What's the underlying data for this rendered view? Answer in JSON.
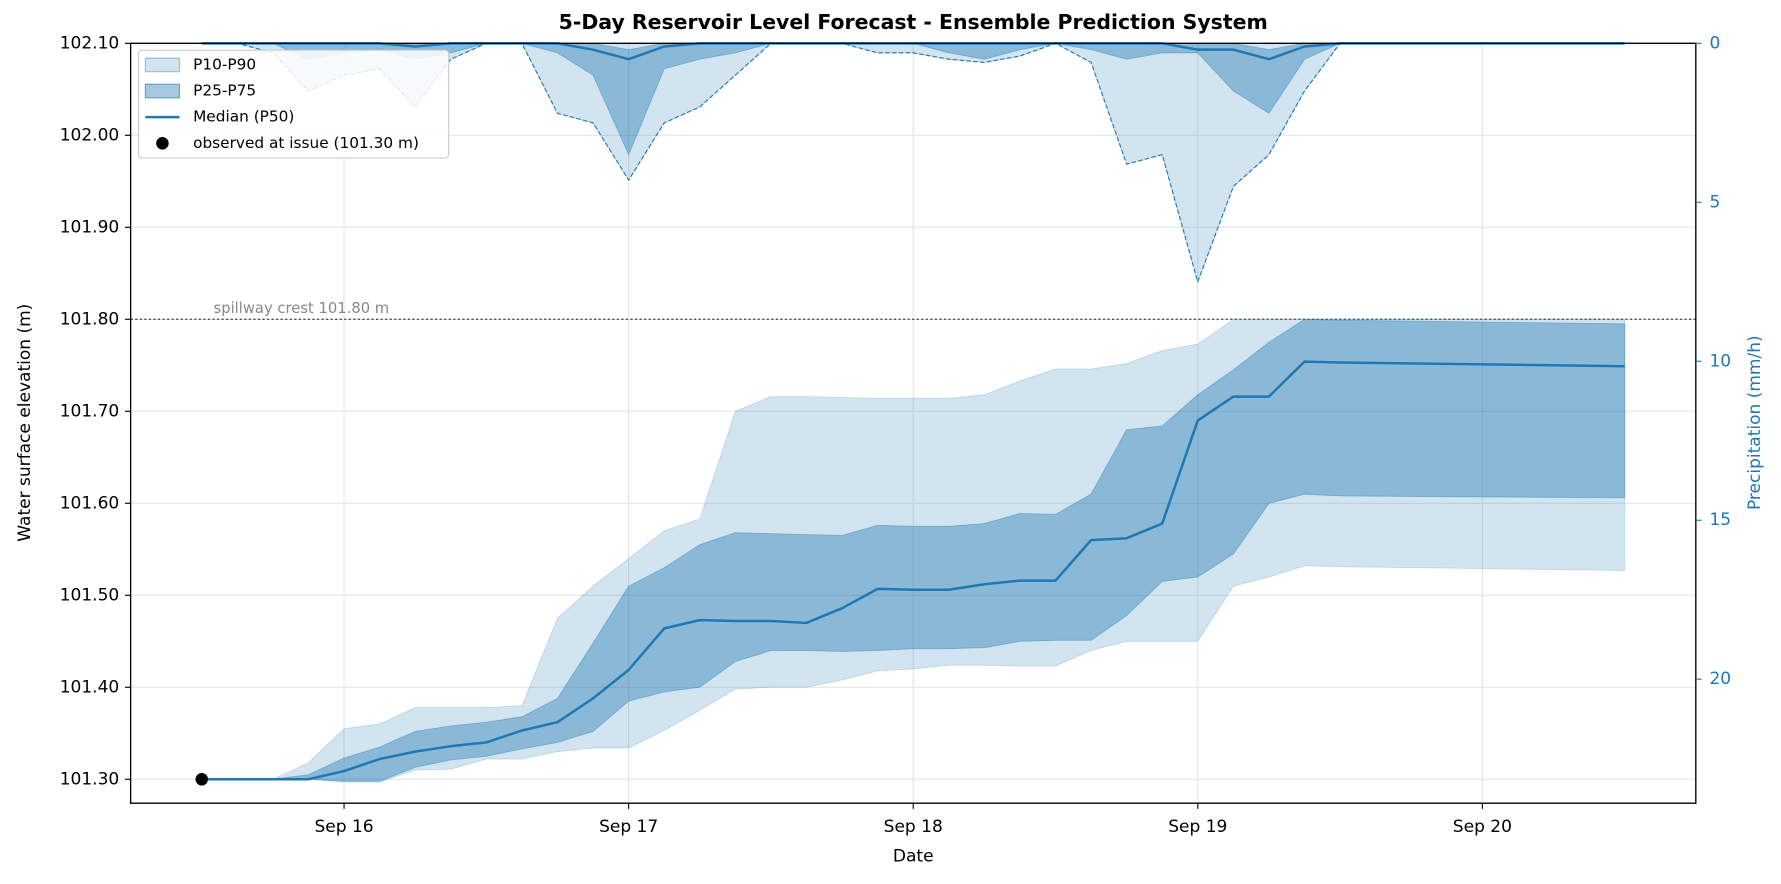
{
  "chart_data": {
    "type": "line",
    "title": "5-Day Reservoir Level Forecast - Ensemble Prediction System",
    "xlabel": "Date",
    "ylabel": "Water surface elevation  (m)",
    "y2label": "Precipitation  (mm/h)",
    "y2_inverted": true,
    "y2_color": "#1f77b4",
    "grid": true,
    "legend": "upper left",
    "x": [
      "Sep 15 12:00",
      "Sep 15 15:00",
      "Sep 15 18:00",
      "Sep 15 21:00",
      "Sep 16 00:00",
      "Sep 16 03:00",
      "Sep 16 06:00",
      "Sep 16 09:00",
      "Sep 16 12:00",
      "Sep 16 15:00",
      "Sep 16 18:00",
      "Sep 16 21:00",
      "Sep 17 00:00",
      "Sep 17 03:00",
      "Sep 17 06:00",
      "Sep 17 09:00",
      "Sep 17 12:00",
      "Sep 17 15:00",
      "Sep 17 18:00",
      "Sep 17 21:00",
      "Sep 18 00:00",
      "Sep 18 03:00",
      "Sep 18 06:00",
      "Sep 18 09:00",
      "Sep 18 12:00",
      "Sep 18 15:00",
      "Sep 18 18:00",
      "Sep 18 21:00",
      "Sep 19 00:00",
      "Sep 19 03:00",
      "Sep 19 06:00",
      "Sep 19 09:00",
      "Sep 19 12:00",
      "Sep 20 12:00"
    ],
    "xlim": [
      "Sep 15 06:00",
      "Sep 20 18:00"
    ],
    "xticks": [
      "Sep 16",
      "Sep 17",
      "Sep 18",
      "Sep 19",
      "Sep 20"
    ],
    "ylim": [
      101.274,
      102.1
    ],
    "yticks": [
      {
        "value": 101.3,
        "label": "101.30"
      },
      {
        "value": 101.4,
        "label": "101.40"
      },
      {
        "value": 101.5,
        "label": "101.50"
      },
      {
        "value": 101.6,
        "label": "101.60"
      },
      {
        "value": 101.7,
        "label": "101.70"
      },
      {
        "value": 101.8,
        "label": "101.80"
      },
      {
        "value": 101.9,
        "label": "101.90"
      },
      {
        "value": 102.0,
        "label": "102.00"
      },
      {
        "value": 102.1,
        "label": "102.10"
      }
    ],
    "y2lim": [
      0,
      23.9
    ],
    "y2ticks": [
      0,
      5,
      10,
      15,
      20
    ],
    "series": [
      {
        "name": "P10-P90",
        "type": "band",
        "color": "#1f77b4",
        "opacity": 0.2,
        "lower": [
          101.3,
          101.3,
          101.3,
          101.3,
          101.297,
          101.297,
          101.31,
          101.311,
          101.322,
          101.322,
          101.33,
          101.334,
          101.334,
          101.353,
          101.375,
          101.398,
          101.4,
          101.4,
          101.408,
          101.418,
          101.42,
          101.424,
          101.424,
          101.423,
          101.423,
          101.44,
          101.45,
          101.45,
          101.45,
          101.51,
          101.52,
          101.532,
          101.531,
          101.527
        ],
        "upper": [
          101.3,
          101.3,
          101.3,
          101.318,
          101.355,
          101.36,
          101.378,
          101.378,
          101.378,
          101.38,
          101.475,
          101.51,
          101.54,
          101.57,
          101.583,
          101.7,
          101.716,
          101.716,
          101.715,
          101.714,
          101.714,
          101.714,
          101.718,
          101.733,
          101.746,
          101.746,
          101.752,
          101.766,
          101.773,
          101.8,
          101.8,
          101.8,
          101.8,
          101.8
        ]
      },
      {
        "name": "P25-P75",
        "type": "band",
        "color": "#1f77b4",
        "opacity": 0.4,
        "lower": [
          101.3,
          101.3,
          101.3,
          101.3,
          101.298,
          101.298,
          101.313,
          101.321,
          101.325,
          101.333,
          101.34,
          101.352,
          101.385,
          101.395,
          101.4,
          101.428,
          101.44,
          101.44,
          101.439,
          101.44,
          101.442,
          101.442,
          101.443,
          101.45,
          101.451,
          101.451,
          101.478,
          101.515,
          101.52,
          101.545,
          101.6,
          101.61,
          101.608,
          101.606
        ],
        "upper": [
          101.3,
          101.3,
          101.3,
          101.305,
          101.323,
          101.335,
          101.352,
          101.358,
          101.362,
          101.368,
          101.388,
          101.448,
          101.51,
          101.53,
          101.555,
          101.568,
          101.567,
          101.566,
          101.565,
          101.576,
          101.575,
          101.575,
          101.578,
          101.589,
          101.588,
          101.61,
          101.68,
          101.684,
          101.718,
          101.745,
          101.775,
          101.8,
          101.799,
          101.795
        ]
      },
      {
        "name": "Median (P50)",
        "type": "line",
        "color": "#1f77b4",
        "values": [
          101.3,
          101.3,
          101.3,
          101.3,
          101.309,
          101.322,
          101.33,
          101.336,
          101.34,
          101.353,
          101.362,
          101.388,
          101.419,
          101.464,
          101.473,
          101.472,
          101.472,
          101.47,
          101.486,
          101.507,
          101.506,
          101.506,
          101.512,
          101.516,
          101.516,
          101.56,
          101.562,
          101.578,
          101.69,
          101.716,
          101.716,
          101.754,
          101.753,
          101.749
        ]
      },
      {
        "type": "band",
        "axis": "y2",
        "color": "#1f77b4",
        "opacity": 0.2,
        "edge": "dashed",
        "lower": [
          0,
          0,
          0,
          0,
          0,
          0,
          0,
          0,
          0,
          0,
          0,
          0,
          0,
          0,
          0,
          0,
          0,
          0,
          0,
          0,
          0,
          0,
          0,
          0,
          0,
          0,
          0,
          0,
          0,
          0,
          0,
          0,
          0,
          0
        ],
        "upper": [
          0,
          0,
          0.3,
          1.5,
          1.0,
          0.8,
          2.0,
          0.5,
          0,
          0,
          2.2,
          2.5,
          4.3,
          2.5,
          2.0,
          1.0,
          0,
          0,
          0,
          0.3,
          0.3,
          0.5,
          0.6,
          0.4,
          0,
          0.6,
          3.8,
          3.5,
          7.5,
          4.5,
          3.5,
          1.5,
          0,
          0
        ]
      },
      {
        "type": "band",
        "axis": "y2",
        "color": "#1f77b4",
        "opacity": 0.4,
        "lower": [
          0,
          0,
          0,
          0,
          0,
          0,
          0,
          0,
          0,
          0,
          0,
          0,
          0.2,
          0,
          0,
          0,
          0,
          0,
          0,
          0,
          0,
          0,
          0,
          0,
          0,
          0,
          0,
          0,
          0,
          0,
          0.2,
          0,
          0,
          0
        ],
        "upper": [
          0,
          0,
          0,
          0.5,
          0.3,
          0.2,
          0.5,
          0.3,
          0,
          0,
          0.3,
          1.0,
          3.5,
          0.8,
          0.5,
          0.3,
          0,
          0,
          0,
          0,
          0,
          0.3,
          0.5,
          0.2,
          0,
          0.2,
          0.5,
          0.3,
          0.3,
          1.5,
          2.2,
          0.5,
          0,
          0
        ]
      },
      {
        "type": "line",
        "axis": "y2",
        "color": "#1f77b4",
        "values": [
          0,
          0,
          0,
          0,
          0,
          0,
          0.1,
          0,
          0,
          0,
          0,
          0.2,
          0.5,
          0.1,
          0,
          0,
          0,
          0,
          0,
          0,
          0,
          0,
          0,
          0,
          0,
          0,
          0,
          0,
          0.2,
          0.2,
          0.5,
          0.1,
          0,
          0
        ]
      }
    ],
    "observed": {
      "name": "observed at issue (101.30 m)",
      "x": "Sep 15 12:00",
      "value": 101.3,
      "color": "#000000"
    },
    "reference_line": {
      "label": "spillway crest 101.80 m",
      "value": 101.8,
      "color": "#555555"
    }
  }
}
